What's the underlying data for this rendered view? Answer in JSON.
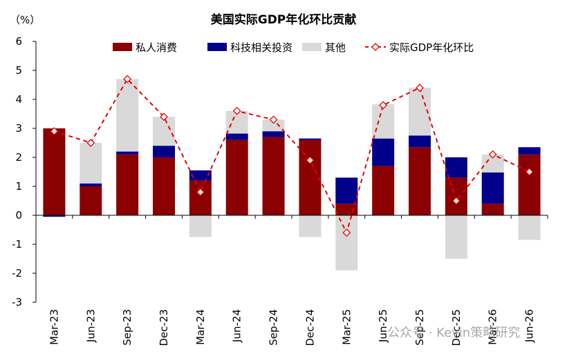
{
  "chart_data": {
    "type": "bar",
    "title": "美国实际GDP年化环比贡献",
    "unit_label": "（%）",
    "categories": [
      "Mar-23",
      "Jun-23",
      "Sep-23",
      "Dec-23",
      "Mar-24",
      "Jun-24",
      "Sep-24",
      "Dec-24",
      "Mar-25",
      "Jun-25",
      "Sep-25",
      "Dec-25",
      "Mar-26",
      "Jun-26"
    ],
    "ylim": [
      -3,
      6
    ],
    "yticks": [
      -3,
      -2,
      -1,
      0,
      1,
      2,
      3,
      4,
      5,
      6
    ],
    "legend_position": "top",
    "grid": false,
    "stacked": true,
    "series": [
      {
        "name": "私人消费",
        "kind": "bar",
        "color": "#8b0000",
        "values": [
          3.0,
          1.0,
          2.1,
          2.0,
          1.2,
          2.6,
          2.7,
          2.6,
          0.4,
          1.7,
          2.35,
          1.3,
          0.4,
          2.1
        ]
      },
      {
        "name": "科技相关投资",
        "kind": "bar",
        "color": "#00008b",
        "values": [
          -0.05,
          0.1,
          0.1,
          0.4,
          0.35,
          0.22,
          0.2,
          0.05,
          0.9,
          0.95,
          0.4,
          0.7,
          1.08,
          0.25
        ]
      },
      {
        "name": "其他",
        "kind": "bar",
        "color": "#d9d9d9",
        "values": [
          -0.02,
          1.4,
          2.5,
          1.0,
          -0.75,
          0.78,
          0.4,
          -0.75,
          -1.9,
          1.18,
          1.65,
          -1.5,
          0.62,
          -0.85
        ]
      },
      {
        "name": "实际GDP年化环比",
        "kind": "line",
        "color": "#e60000",
        "values": [
          2.9,
          2.5,
          4.7,
          3.4,
          0.8,
          3.6,
          3.3,
          1.9,
          -0.6,
          3.8,
          4.4,
          0.5,
          2.1,
          1.5
        ]
      }
    ]
  },
  "watermark": "公众号 · Kevin策略研究"
}
